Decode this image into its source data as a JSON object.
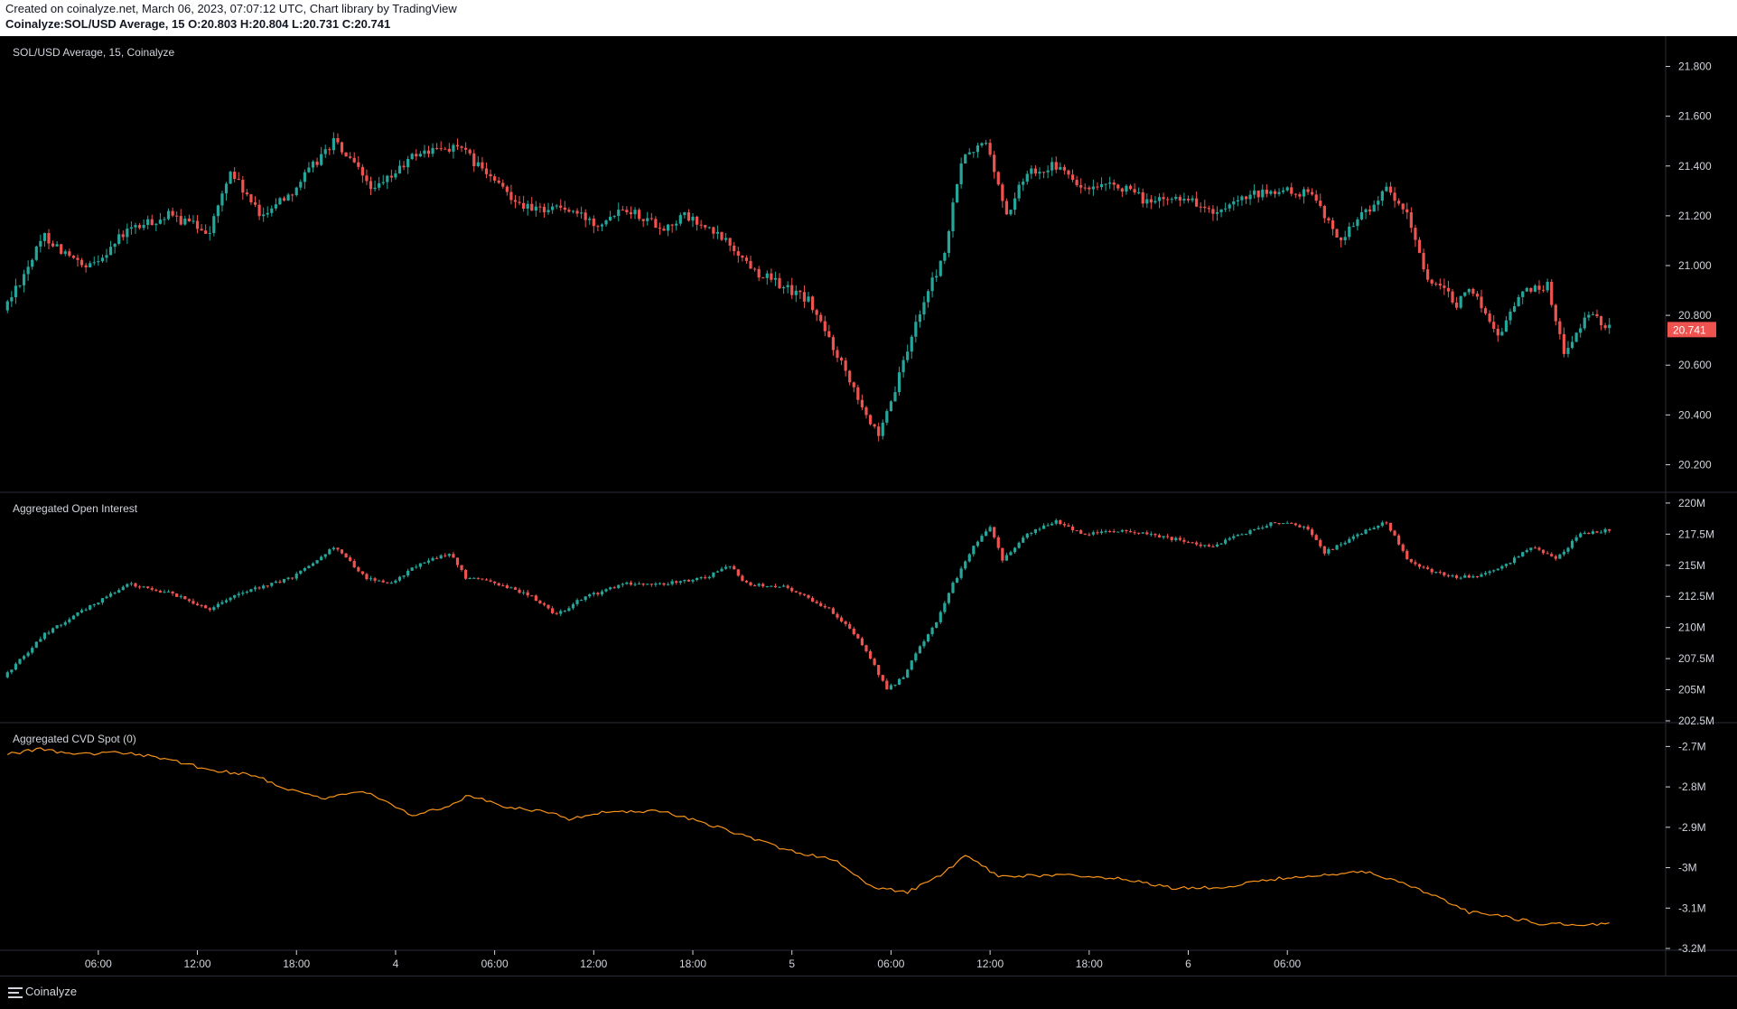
{
  "header": {
    "line1": "Created on coinalyze.net, March 06, 2023, 07:07:12 UTC, Chart library by TradingView",
    "symbol": "Coinalyze:SOL/USD Average, 15",
    "o_label": "O:",
    "o_value": "20.803",
    "h_label": "H:",
    "h_value": "20.804",
    "l_label": "L:",
    "l_value": "20.731",
    "c_label": "C:",
    "c_value": "20.741"
  },
  "colors": {
    "up": "#26a69a",
    "down": "#ef5350",
    "cvd_line": "#f7931a",
    "last_price_bg": "#ef5350",
    "grid": "#2a2e39",
    "text": "#d1d4dc",
    "background": "#000000"
  },
  "footer": {
    "logo_icon": "hamburger-logo-icon",
    "brand": "Coinalyze"
  },
  "chart_data": [
    {
      "type": "candlestick",
      "title": "SOL/USD Average, 15, Coinalyze",
      "ylim": [
        20.1,
        21.9
      ],
      "yticks": [
        "21.800",
        "21.600",
        "21.400",
        "21.200",
        "21.000",
        "20.800",
        "20.600",
        "20.400",
        "20.200"
      ],
      "last_price": "20.741",
      "key_points": [
        [
          0,
          20.82
        ],
        [
          10,
          21.12
        ],
        [
          20,
          20.98
        ],
        [
          30,
          21.14
        ],
        [
          40,
          21.2
        ],
        [
          50,
          21.14
        ],
        [
          55,
          21.38
        ],
        [
          62,
          21.2
        ],
        [
          70,
          21.3
        ],
        [
          80,
          21.5
        ],
        [
          90,
          21.3
        ],
        [
          100,
          21.45
        ],
        [
          110,
          21.48
        ],
        [
          120,
          21.32
        ],
        [
          128,
          21.22
        ],
        [
          134,
          21.24
        ],
        [
          144,
          21.17
        ],
        [
          150,
          21.24
        ],
        [
          160,
          21.15
        ],
        [
          165,
          21.2
        ],
        [
          175,
          21.1
        ],
        [
          182,
          20.98
        ],
        [
          195,
          20.86
        ],
        [
          205,
          20.55
        ],
        [
          212,
          20.3
        ],
        [
          216,
          20.5
        ],
        [
          222,
          20.82
        ],
        [
          228,
          21.05
        ],
        [
          232,
          21.42
        ],
        [
          238,
          21.5
        ],
        [
          243,
          21.2
        ],
        [
          248,
          21.38
        ],
        [
          255,
          21.4
        ],
        [
          262,
          21.3
        ],
        [
          270,
          21.32
        ],
        [
          278,
          21.25
        ],
        [
          286,
          21.28
        ],
        [
          294,
          21.2
        ],
        [
          302,
          21.28
        ],
        [
          310,
          21.3
        ],
        [
          318,
          21.28
        ],
        [
          323,
          21.1
        ],
        [
          330,
          21.22
        ],
        [
          335,
          21.3
        ],
        [
          340,
          21.2
        ],
        [
          345,
          20.95
        ],
        [
          352,
          20.85
        ],
        [
          356,
          20.9
        ],
        [
          362,
          20.72
        ],
        [
          368,
          20.9
        ],
        [
          374,
          20.92
        ],
        [
          378,
          20.65
        ],
        [
          384,
          20.8
        ],
        [
          388,
          20.76
        ]
      ]
    },
    {
      "type": "candlestick",
      "title": "Aggregated Open Interest",
      "ylim": [
        202.5,
        220.5
      ],
      "yticks": [
        "220M",
        "217.5M",
        "215M",
        "212.5M",
        "210M",
        "207.5M",
        "205M",
        "202.5M"
      ],
      "key_points": [
        [
          0,
          206
        ],
        [
          10,
          209.5
        ],
        [
          20,
          211.5
        ],
        [
          30,
          213.5
        ],
        [
          40,
          212.8
        ],
        [
          50,
          211.5
        ],
        [
          55,
          212.5
        ],
        [
          60,
          213
        ],
        [
          70,
          214
        ],
        [
          80,
          216.5
        ],
        [
          88,
          214
        ],
        [
          94,
          213.5
        ],
        [
          100,
          215
        ],
        [
          108,
          216
        ],
        [
          112,
          214
        ],
        [
          120,
          213.5
        ],
        [
          128,
          212.5
        ],
        [
          134,
          211
        ],
        [
          140,
          212.3
        ],
        [
          150,
          213.5
        ],
        [
          160,
          213.5
        ],
        [
          170,
          214
        ],
        [
          176,
          215
        ],
        [
          180,
          213.5
        ],
        [
          190,
          213.2
        ],
        [
          200,
          211.5
        ],
        [
          205,
          210
        ],
        [
          210,
          207.5
        ],
        [
          214,
          205
        ],
        [
          218,
          206
        ],
        [
          222,
          208.5
        ],
        [
          226,
          210.5
        ],
        [
          230,
          213.5
        ],
        [
          235,
          216.5
        ],
        [
          239,
          218
        ],
        [
          242,
          215.5
        ],
        [
          248,
          217.5
        ],
        [
          255,
          218.5
        ],
        [
          262,
          217.5
        ],
        [
          270,
          217.8
        ],
        [
          278,
          217.5
        ],
        [
          285,
          217
        ],
        [
          292,
          216.5
        ],
        [
          300,
          217.5
        ],
        [
          308,
          218.5
        ],
        [
          316,
          218
        ],
        [
          320,
          216
        ],
        [
          328,
          217.5
        ],
        [
          335,
          218.5
        ],
        [
          340,
          215.5
        ],
        [
          346,
          214.5
        ],
        [
          352,
          214
        ],
        [
          358,
          214.2
        ],
        [
          364,
          215
        ],
        [
          370,
          216.5
        ],
        [
          376,
          215.5
        ],
        [
          382,
          217.5
        ],
        [
          388,
          217.8
        ]
      ]
    },
    {
      "type": "line",
      "title": "Aggregated CVD Spot (0)",
      "ylim": [
        -3.2,
        -2.65
      ],
      "yticks": [
        "-2.7M",
        "-2.8M",
        "-2.9M",
        "-3M",
        "-3.1M",
        "-3.2M"
      ],
      "key_points": [
        [
          0,
          -2.72
        ],
        [
          8,
          -2.705
        ],
        [
          15,
          -2.72
        ],
        [
          28,
          -2.715
        ],
        [
          38,
          -2.73
        ],
        [
          50,
          -2.76
        ],
        [
          60,
          -2.77
        ],
        [
          66,
          -2.8
        ],
        [
          76,
          -2.83
        ],
        [
          86,
          -2.81
        ],
        [
          98,
          -2.87
        ],
        [
          106,
          -2.85
        ],
        [
          112,
          -2.82
        ],
        [
          120,
          -2.85
        ],
        [
          130,
          -2.86
        ],
        [
          136,
          -2.88
        ],
        [
          146,
          -2.86
        ],
        [
          158,
          -2.86
        ],
        [
          166,
          -2.88
        ],
        [
          178,
          -2.92
        ],
        [
          190,
          -2.96
        ],
        [
          200,
          -2.98
        ],
        [
          210,
          -3.05
        ],
        [
          218,
          -3.06
        ],
        [
          226,
          -3.02
        ],
        [
          232,
          -2.97
        ],
        [
          240,
          -3.02
        ],
        [
          250,
          -3.02
        ],
        [
          262,
          -3.02
        ],
        [
          272,
          -3.03
        ],
        [
          282,
          -3.05
        ],
        [
          294,
          -3.05
        ],
        [
          304,
          -3.03
        ],
        [
          318,
          -3.02
        ],
        [
          330,
          -3.01
        ],
        [
          338,
          -3.04
        ],
        [
          346,
          -3.07
        ],
        [
          354,
          -3.11
        ],
        [
          362,
          -3.12
        ],
        [
          372,
          -3.14
        ],
        [
          380,
          -3.14
        ],
        [
          388,
          -3.14
        ]
      ]
    }
  ],
  "x_axis": {
    "ticks": [
      {
        "bar": 22,
        "label": "06:00"
      },
      {
        "bar": 46,
        "label": "12:00"
      },
      {
        "bar": 70,
        "label": "18:00"
      },
      {
        "bar": 94,
        "label": "4"
      },
      {
        "bar": 118,
        "label": "06:00"
      },
      {
        "bar": 142,
        "label": "12:00"
      },
      {
        "bar": 166,
        "label": "18:00"
      },
      {
        "bar": 190,
        "label": "5"
      },
      {
        "bar": 214,
        "label": "06:00"
      },
      {
        "bar": 238,
        "label": "12:00"
      },
      {
        "bar": 262,
        "label": "18:00"
      },
      {
        "bar": 286,
        "label": "6"
      },
      {
        "bar": 310,
        "label": "06:00"
      }
    ],
    "bar_count": 389
  }
}
